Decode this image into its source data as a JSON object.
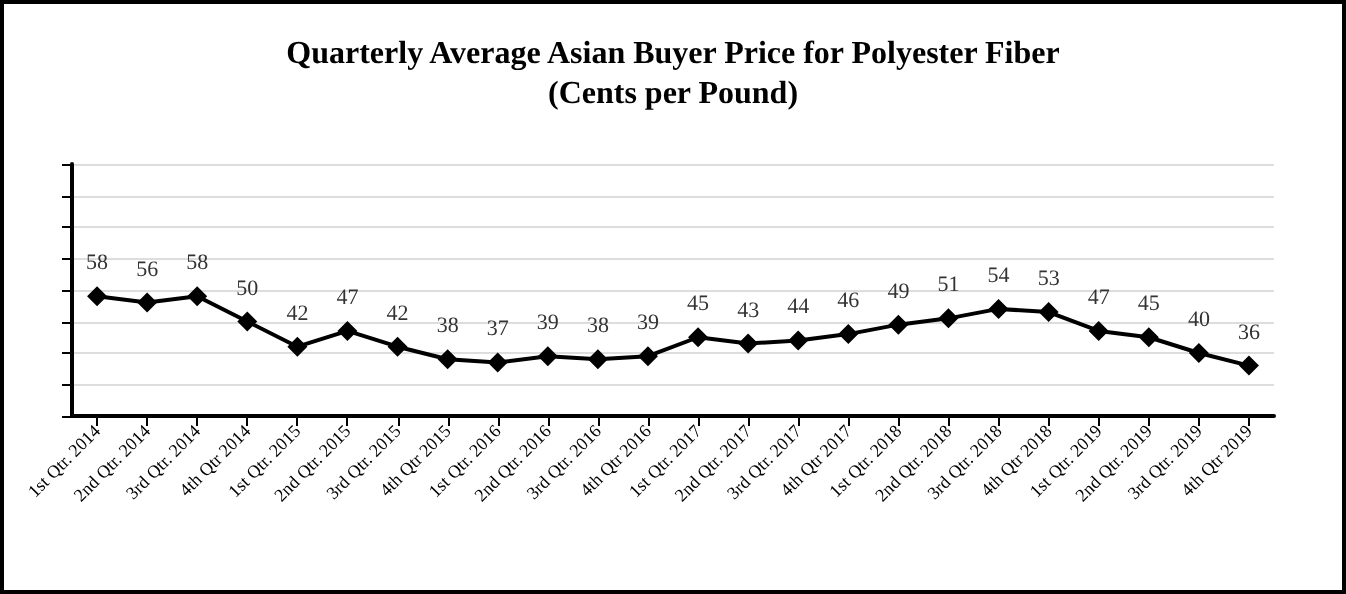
{
  "chart_data": {
    "type": "line",
    "title": "Quarterly Average Asian Buyer Price for Polyester Fiber",
    "subtitle": "(Cents per Pound)",
    "categories": [
      "1st Qtr. 2014",
      "2nd Qtr. 2014",
      "3rd Qtr. 2014",
      "4th Qtr 2014",
      "1st Qtr. 2015",
      "2nd Qtr. 2015",
      "3rd Qtr. 2015",
      "4th Qtr 2015",
      "1st Qtr. 2016",
      "2nd Qtr. 2016",
      "3rd Qtr. 2016",
      "4th Qtr 2016",
      "1st Qtr. 2017",
      "2nd Qtr. 2017",
      "3rd Qtr. 2017",
      "4th Qtr 2017",
      "1st Qtr. 2018",
      "2nd Qtr. 2018",
      "3rd Qtr. 2018",
      "4th Qtr 2018",
      "1st Qtr. 2019",
      "2nd Qtr. 2019",
      "3rd Qtr. 2019",
      "4th Qtr 2019"
    ],
    "series": [
      {
        "color": "#000000",
        "values": [
          58,
          56,
          58,
          50,
          42,
          47,
          42,
          38,
          37,
          39,
          38,
          39,
          45,
          43,
          44,
          46,
          49,
          51,
          54,
          53,
          47,
          45,
          40,
          36
        ]
      }
    ],
    "ylim": [
      20,
      100
    ],
    "yticks": [
      {
        "value": 20,
        "label": null
      },
      {
        "value": 30,
        "label": null
      },
      {
        "value": 40,
        "label": null
      },
      {
        "value": 50,
        "label": null
      },
      {
        "value": 60,
        "label": null
      },
      {
        "value": 70,
        "label": null
      },
      {
        "value": 80,
        "label": null
      },
      {
        "value": 90,
        "label": null
      },
      {
        "value": 100,
        "label": null
      }
    ],
    "tick_labels": "x",
    "grid": "y",
    "data_labels": true,
    "marker": "diamond",
    "line_style": "solid"
  }
}
